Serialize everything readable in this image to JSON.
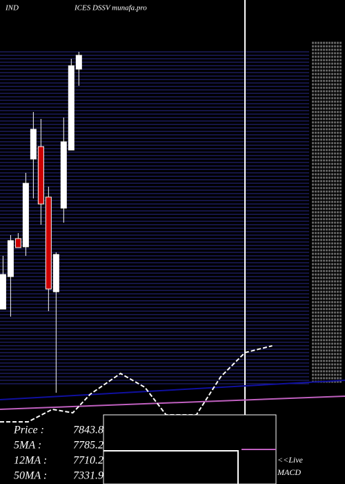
{
  "chart_data": {
    "type": "candlestick",
    "title": "IND",
    "subtitle": "ICES DSSV munafa.pro",
    "xlim": [
      -0.4,
      45.1
    ],
    "ylim": [
      7195,
      7925
    ],
    "x": [
      0,
      1,
      2,
      3,
      4,
      5,
      6,
      7,
      8,
      9,
      10
    ],
    "open": [
      7458.8,
      7507.8,
      7565.2,
      7552.7,
      7685.1,
      7703.9,
      7627.8,
      7484.9,
      7611.1,
      7698.7,
      7820.7
    ],
    "close": [
      7511.0,
      7562.1,
      7551.6,
      7648.6,
      7730.0,
      7617.3,
      7489.1,
      7541.2,
      7711.2,
      7825.9,
      7841.6
    ],
    "high": [
      7539.1,
      7570.4,
      7573.5,
      7664.3,
      7756.1,
      7745.6,
      7643.4,
      7544.3,
      7747.7,
      7836.4,
      7846.8
    ],
    "low": [
      7458.8,
      7447.4,
      7551.6,
      7539.1,
      7625.7,
      7586.1,
      7455.7,
      7332.6,
      7589.2,
      7698.7,
      7795.7
    ],
    "up_color": "#ffffff",
    "down_color": "#cc0000",
    "lines": [
      {
        "color": "#1010a0",
        "dashed": false,
        "x": [
          -0.4,
          45.1
        ],
        "values": [
          7322.2,
          7351.4
        ]
      },
      {
        "color": "#c060c0",
        "dashed": false,
        "x": [
          -0.4,
          45.1
        ],
        "values": [
          7307.6,
          7327.4
        ]
      },
      {
        "color": "#ffffff",
        "dashed": true,
        "x": [
          -0.4,
          3.3,
          6.5,
          9.2,
          11.5,
          15.5,
          18.7,
          21.5,
          25.5,
          28.7,
          31.9,
          35.5
        ],
        "values": [
          7288.8,
          7288.8,
          7307.6,
          7302.4,
          7330.5,
          7361.8,
          7340.9,
          7299.3,
          7299.3,
          7356.6,
          7393.1,
          7403.5
        ]
      }
    ],
    "info": [
      {
        "label": "Price   :",
        "value": 7843.8
      },
      {
        "label": "5MA :",
        "value": 7785.2
      },
      {
        "label": "12MA :",
        "value": 7710.2
      },
      {
        "label": "50MA :",
        "value": 7331.9
      }
    ],
    "macd_label": [
      "<<Live",
      "MACD"
    ]
  }
}
